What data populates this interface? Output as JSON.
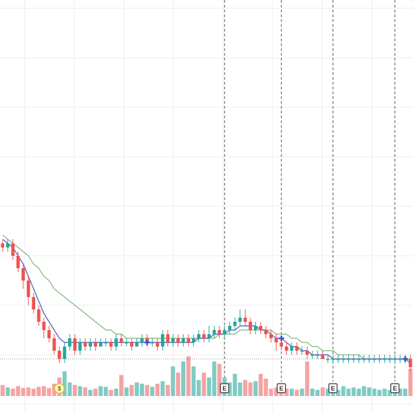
{
  "chart_data": {
    "type": "candlestick",
    "grid": true,
    "price_range": [
      0,
      100
    ],
    "volume_range": [
      0,
      100
    ],
    "reference_price": 13,
    "colors": {
      "up": "#26a69a",
      "down": "#ef5350",
      "volume_up": "#80cbc4",
      "volume_down": "#f4a3a3",
      "ma_fast": "#5c6bc0",
      "ma_slow": "#7cb87a",
      "grid": "#eeeeee",
      "event_line": "#555555",
      "cross": "#3f51d8",
      "dividend": "#e6c229"
    },
    "candles": [
      [
        41,
        40,
        42,
        39
      ],
      [
        40,
        41,
        42,
        39
      ],
      [
        41,
        38,
        42,
        37
      ],
      [
        38,
        35,
        39,
        34
      ],
      [
        35,
        32,
        36,
        30
      ],
      [
        32,
        28,
        33,
        26
      ],
      [
        28,
        25,
        29,
        24
      ],
      [
        25,
        22,
        26,
        21
      ],
      [
        22,
        20,
        23,
        18
      ],
      [
        20,
        18,
        21,
        17
      ],
      [
        18,
        15,
        19,
        14
      ],
      [
        15,
        13,
        16,
        12
      ],
      [
        13,
        16,
        17,
        12
      ],
      [
        16,
        18,
        19,
        15
      ],
      [
        18,
        15,
        19,
        14
      ],
      [
        15,
        17,
        18,
        14
      ],
      [
        17,
        16,
        18,
        15
      ],
      [
        16,
        17,
        18,
        15
      ],
      [
        17,
        16,
        18,
        15
      ],
      [
        16,
        17,
        18,
        16
      ],
      [
        17,
        17,
        18,
        16
      ],
      [
        17,
        16,
        18,
        15
      ],
      [
        16,
        18,
        19,
        15
      ],
      [
        18,
        17,
        19,
        16
      ],
      [
        17,
        17,
        18,
        16
      ],
      [
        17,
        16,
        18,
        15
      ],
      [
        16,
        17,
        18,
        16
      ],
      [
        17,
        18,
        19,
        16
      ],
      [
        18,
        17,
        19,
        16
      ],
      [
        17,
        17,
        18,
        16
      ],
      [
        17,
        16,
        18,
        15
      ],
      [
        16,
        19,
        20,
        15
      ],
      [
        19,
        17,
        20,
        16
      ],
      [
        17,
        18,
        19,
        16
      ],
      [
        18,
        17,
        19,
        16
      ],
      [
        17,
        18,
        19,
        16
      ],
      [
        18,
        17,
        19,
        16
      ],
      [
        17,
        18,
        19,
        16
      ],
      [
        18,
        19,
        20,
        17
      ],
      [
        19,
        18,
        20,
        17
      ],
      [
        18,
        19,
        21,
        17
      ],
      [
        19,
        20,
        21,
        18
      ],
      [
        20,
        19,
        21,
        18
      ],
      [
        19,
        20,
        21,
        18
      ],
      [
        20,
        21,
        22,
        19
      ],
      [
        21,
        22,
        23,
        20
      ],
      [
        22,
        23,
        25,
        21
      ],
      [
        23,
        22,
        25,
        21
      ],
      [
        22,
        20,
        23,
        19
      ],
      [
        20,
        21,
        22,
        19
      ],
      [
        21,
        20,
        22,
        19
      ],
      [
        20,
        19,
        21,
        18
      ],
      [
        19,
        18,
        20,
        17
      ],
      [
        18,
        17,
        19,
        15
      ],
      [
        17,
        16,
        18,
        15
      ],
      [
        16,
        15,
        17,
        14
      ],
      [
        15,
        16,
        17,
        14
      ],
      [
        16,
        15,
        17,
        14
      ],
      [
        15,
        15,
        16,
        14
      ],
      [
        15,
        14,
        16,
        13
      ],
      [
        14,
        14,
        15,
        13
      ],
      [
        14,
        14,
        15,
        13
      ],
      [
        14,
        13,
        15,
        13
      ],
      [
        13,
        13,
        14,
        12
      ],
      [
        13,
        13,
        14,
        12
      ],
      [
        13,
        13,
        14,
        12
      ],
      [
        13,
        13,
        14,
        12
      ],
      [
        13,
        13,
        14,
        12
      ],
      [
        13,
        13,
        14,
        12
      ],
      [
        13,
        13,
        14,
        12
      ],
      [
        13,
        13,
        14,
        12
      ],
      [
        13,
        13,
        14,
        12
      ],
      [
        13,
        13,
        14,
        12
      ],
      [
        13,
        13,
        14,
        12
      ],
      [
        13,
        13,
        14,
        12
      ],
      [
        13,
        13,
        14,
        12
      ],
      [
        13,
        13,
        14,
        12
      ],
      [
        13,
        13,
        14,
        12
      ],
      [
        13,
        13,
        14,
        12
      ],
      [
        13,
        11,
        14,
        10
      ]
    ],
    "volumes": [
      18,
      14,
      12,
      16,
      13,
      14,
      12,
      15,
      16,
      13,
      20,
      30,
      40,
      22,
      18,
      16,
      14,
      10,
      12,
      16,
      15,
      10,
      12,
      34,
      14,
      18,
      22,
      20,
      18,
      15,
      20,
      24,
      18,
      48,
      38,
      56,
      64,
      48,
      26,
      38,
      30,
      56,
      52,
      30,
      22,
      36,
      22,
      26,
      22,
      24,
      36,
      28,
      12,
      14,
      10,
      12,
      12,
      10,
      12,
      56,
      12,
      10,
      14,
      12,
      12,
      10,
      16,
      12,
      14,
      12,
      16,
      14,
      12,
      10,
      12,
      10,
      14,
      12,
      12,
      44
    ],
    "ma_fast": [
      42,
      41,
      40,
      38,
      36,
      33,
      30,
      27,
      24,
      22,
      20,
      18,
      17,
      17,
      17,
      17,
      17,
      17,
      17,
      17,
      17,
      17,
      17,
      17,
      17,
      17,
      17,
      17,
      17,
      17,
      17,
      17,
      17,
      17,
      17,
      17,
      17,
      17,
      18,
      18,
      18,
      19,
      19,
      19,
      20,
      20,
      21,
      21,
      21,
      21,
      20,
      20,
      19,
      18,
      18,
      17,
      16,
      16,
      15,
      15,
      14,
      14,
      14,
      14,
      13,
      13,
      13,
      13,
      13,
      13,
      13,
      13,
      13,
      13,
      13,
      13,
      13,
      13,
      13,
      12
    ],
    "ma_slow": [
      43,
      42,
      41,
      40,
      39,
      38,
      36,
      35,
      33,
      32,
      30,
      29,
      28,
      27,
      26,
      25,
      24,
      23,
      22,
      21,
      20,
      20,
      19,
      19,
      18,
      18,
      18,
      18,
      18,
      18,
      18,
      18,
      18,
      18,
      18,
      18,
      18,
      18,
      18,
      18,
      18,
      18,
      19,
      19,
      19,
      19,
      20,
      20,
      20,
      20,
      20,
      20,
      20,
      19,
      19,
      19,
      18,
      18,
      17,
      17,
      16,
      16,
      15,
      15,
      15,
      14,
      14,
      14,
      14,
      14,
      13,
      13,
      13,
      13,
      13,
      13,
      13,
      13,
      13,
      13
    ],
    "ma_crosses": [
      28,
      54,
      78,
      80
    ],
    "earnings_markers": [
      {
        "index": 43,
        "label": "E"
      },
      {
        "index": 54,
        "label": "E"
      },
      {
        "index": 64,
        "label": "E"
      },
      {
        "index": 76,
        "label": "E"
      }
    ],
    "dividend_markers": [
      {
        "index": 11,
        "label": "$"
      }
    ]
  }
}
